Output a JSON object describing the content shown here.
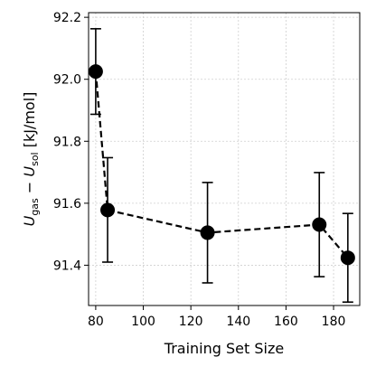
{
  "chart_data": {
    "type": "line",
    "xlabel": "Training Set Size",
    "ylabel": {
      "var1": "U",
      "sub1": "gas",
      "minus": " − ",
      "var2": "U",
      "sub2": "sol",
      "unit": " [kJ/mol]"
    },
    "xlim": [
      77,
      191
    ],
    "ylim": [
      91.27,
      92.215
    ],
    "xticks": [
      80,
      100,
      120,
      140,
      160,
      180
    ],
    "yticks": [
      91.4,
      91.6,
      91.8,
      92.0,
      92.2
    ],
    "xtick_labels": [
      "80",
      "100",
      "120",
      "140",
      "160",
      "180"
    ],
    "ytick_labels": [
      "91.4",
      "91.6",
      "91.8",
      "92.0",
      "92.2"
    ],
    "grid": true,
    "series": [
      {
        "x": [
          80,
          85,
          127,
          174,
          186
        ],
        "y": [
          92.025,
          91.578,
          91.505,
          91.531,
          91.424
        ],
        "yerr_upper": [
          92.163,
          91.747,
          91.667,
          91.699,
          91.567
        ],
        "yerr_lower": [
          91.887,
          91.41,
          91.343,
          91.363,
          91.281
        ],
        "color": "#000000",
        "linestyle": "dashed",
        "marker": "circle"
      }
    ]
  }
}
